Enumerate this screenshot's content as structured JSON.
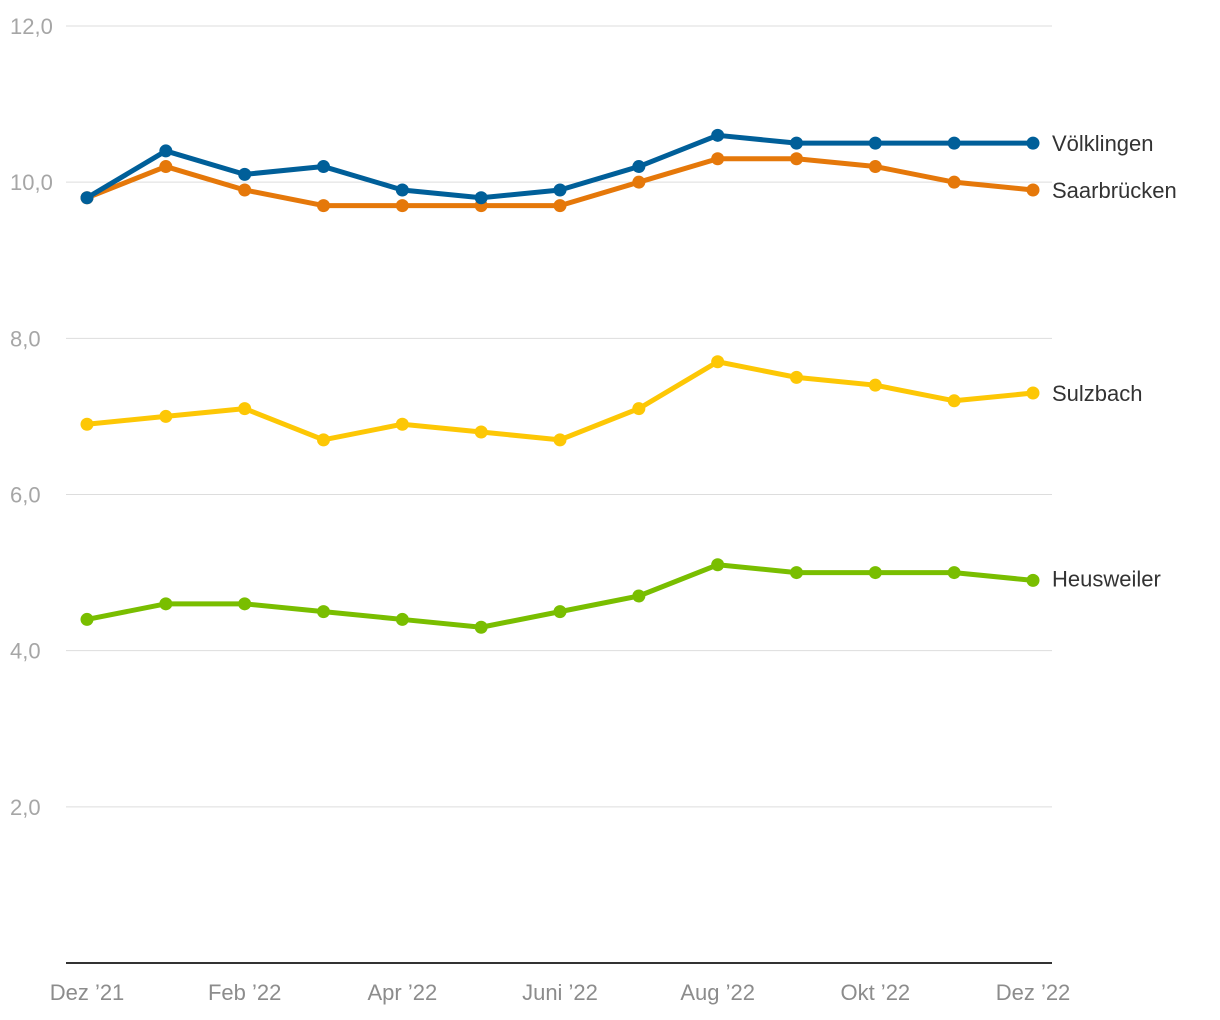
{
  "chart_data": {
    "type": "line",
    "title": "",
    "xlabel": "",
    "ylabel": "",
    "ylim": [
      0,
      12
    ],
    "yticks": [
      2,
      4,
      6,
      8,
      10,
      12
    ],
    "ytick_labels": [
      "2,0",
      "4,0",
      "6,0",
      "8,0",
      "10,0",
      "12,0"
    ],
    "grid": true,
    "legend": "inline-right",
    "x": [
      "Dez 2021",
      "Jan 2022",
      "Feb 2022",
      "Mär 2022",
      "Apr 2022",
      "Mai 2022",
      "Juni 2022",
      "Juli 2022",
      "Aug 2022",
      "Sep 2022",
      "Okt 2022",
      "Nov 2022",
      "Dez 2022"
    ],
    "xtick_labels": [
      {
        "index": 0,
        "label": "Dez ’21"
      },
      {
        "index": 2,
        "label": "Feb ’22"
      },
      {
        "index": 4,
        "label": "Apr ’22"
      },
      {
        "index": 6,
        "label": "Juni ’22"
      },
      {
        "index": 8,
        "label": "Aug ’22"
      },
      {
        "index": 10,
        "label": "Okt ’22"
      },
      {
        "index": 12,
        "label": "Dez ’22"
      }
    ],
    "series": [
      {
        "name": "Völklingen",
        "color": "#005f99",
        "values": [
          9.8,
          10.4,
          10.1,
          10.2,
          9.9,
          9.8,
          9.9,
          10.2,
          10.6,
          10.5,
          10.5,
          10.5,
          10.5
        ]
      },
      {
        "name": "Saarbrücken",
        "color": "#e5780a",
        "values": [
          9.8,
          10.2,
          9.9,
          9.7,
          9.7,
          9.7,
          9.7,
          10.0,
          10.3,
          10.3,
          10.2,
          10.0,
          9.9
        ]
      },
      {
        "name": "Sulzbach",
        "color": "#fdc705",
        "values": [
          6.9,
          7.0,
          7.1,
          6.7,
          6.9,
          6.8,
          6.7,
          7.1,
          7.7,
          7.5,
          7.4,
          7.2,
          7.3
        ]
      },
      {
        "name": "Heusweiler",
        "color": "#79be00",
        "values": [
          4.4,
          4.6,
          4.6,
          4.5,
          4.4,
          4.3,
          4.5,
          4.7,
          5.1,
          5.0,
          5.0,
          5.0,
          4.9
        ]
      }
    ]
  }
}
